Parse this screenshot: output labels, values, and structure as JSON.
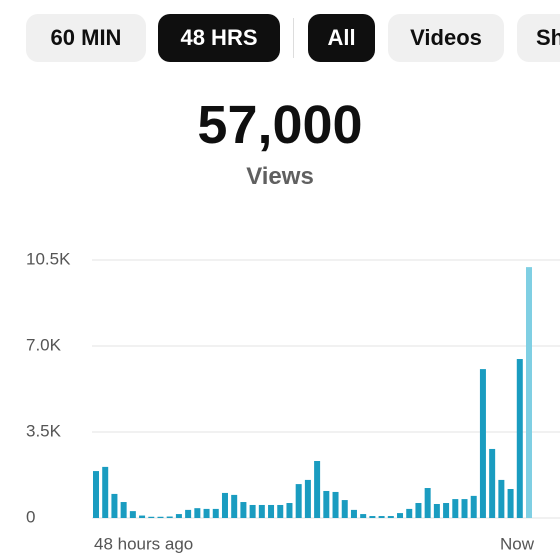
{
  "tabs": [
    {
      "label": "60 MIN",
      "selected": false
    },
    {
      "label": "48 HRS",
      "selected": true
    },
    {
      "label": "All",
      "selected": true
    },
    {
      "label": "Videos",
      "selected": false
    },
    {
      "label": "Sh",
      "selected": false
    }
  ],
  "headline": {
    "value": "57,000",
    "label": "Views"
  },
  "chart_data": {
    "type": "bar",
    "categories": [
      "48 hours ago",
      null,
      null,
      null,
      null,
      null,
      null,
      null,
      null,
      null,
      null,
      null,
      null,
      null,
      null,
      null,
      null,
      null,
      null,
      null,
      null,
      null,
      null,
      null,
      null,
      null,
      null,
      null,
      null,
      null,
      null,
      null,
      null,
      null,
      null,
      null,
      null,
      null,
      null,
      null,
      null,
      null,
      null,
      null,
      null,
      null,
      null,
      "Now"
    ],
    "values": [
      1910,
      2080,
      980,
      650,
      280,
      100,
      50,
      50,
      60,
      160,
      330,
      400,
      370,
      370,
      1020,
      940,
      650,
      530,
      530,
      530,
      530,
      610,
      1380,
      1550,
      2320,
      1100,
      1060,
      730,
      330,
      160,
      80,
      80,
      80,
      200,
      370,
      610,
      1220,
      570,
      610,
      770,
      770,
      900,
      6060,
      2810,
      1550,
      1180,
      6470,
      10210
    ],
    "color": "#1a9cc0",
    "last_color": "#7fcfe3",
    "ylim": [
      0,
      10500
    ],
    "yticks": [
      0,
      {
        "value": 3500,
        "label": "3.5K"
      },
      {
        "value": 7000,
        "label": "7.0K"
      },
      {
        "value": 10500,
        "label": "10.5K"
      }
    ],
    "grid": true
  }
}
